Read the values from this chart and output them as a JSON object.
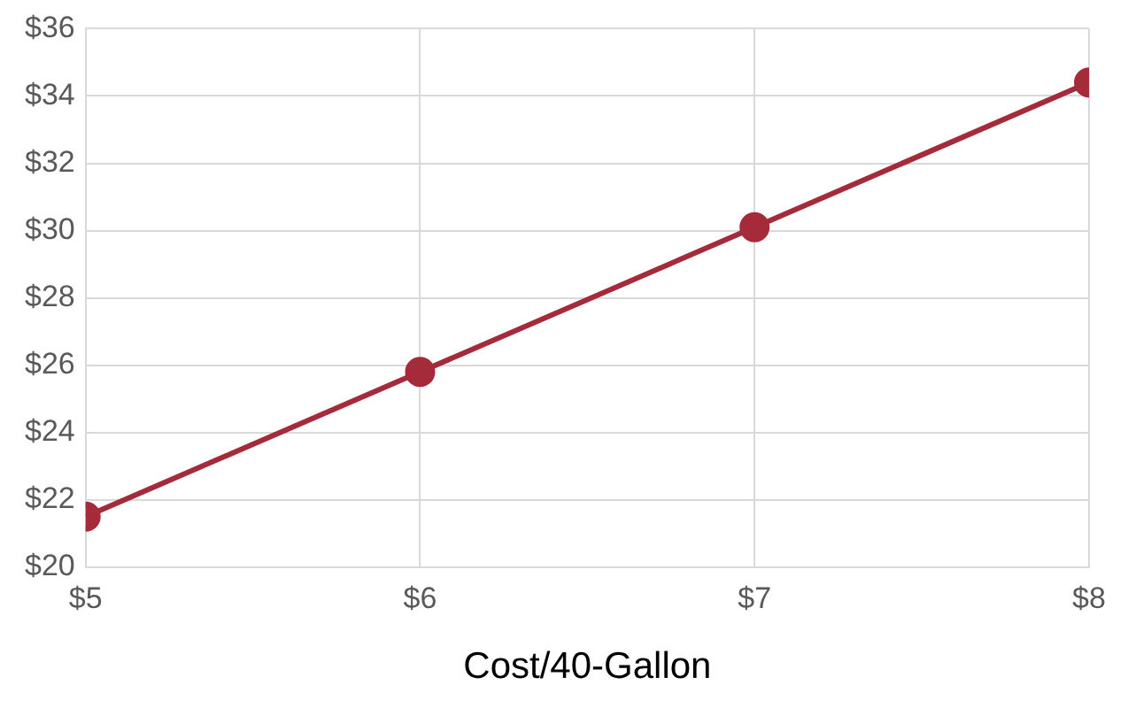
{
  "chart_data": {
    "type": "line",
    "xlabel": "Cost/40-Gallon",
    "x": [
      5,
      6,
      7,
      8
    ],
    "series": [
      {
        "color": "#a52a3a",
        "values": [
          21.5,
          25.8,
          30.1,
          34.4
        ]
      }
    ],
    "xlim": [
      5,
      8
    ],
    "xticks": [
      {
        "value": 5,
        "label": "$5"
      },
      {
        "value": 6,
        "label": "$6"
      },
      {
        "value": 7,
        "label": "$7"
      },
      {
        "value": 8,
        "label": "$8"
      }
    ],
    "ylim": [
      20,
      36
    ],
    "yticks": [
      {
        "value": 20,
        "label": "$20"
      },
      {
        "value": 22,
        "label": "$22"
      },
      {
        "value": 24,
        "label": "$24"
      },
      {
        "value": 26,
        "label": "$26"
      },
      {
        "value": 28,
        "label": "$28"
      },
      {
        "value": 30,
        "label": "$30"
      },
      {
        "value": 32,
        "label": "$32"
      },
      {
        "value": 34,
        "label": "$34"
      },
      {
        "value": 36,
        "label": "$36"
      }
    ],
    "grid": true,
    "legend": false,
    "marker": "circle",
    "line_style": "solid"
  }
}
